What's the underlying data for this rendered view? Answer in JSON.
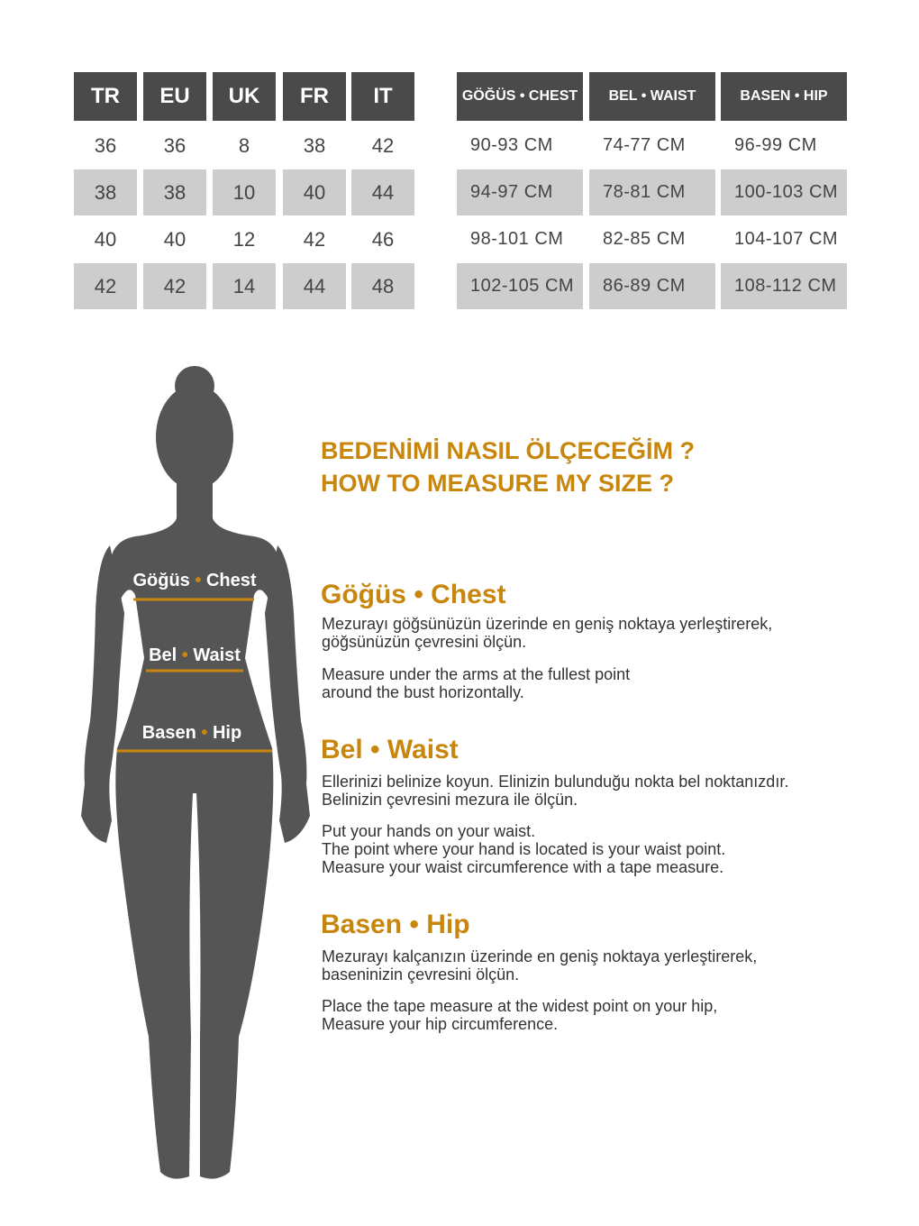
{
  "size_table": {
    "headers": [
      "TR",
      "EU",
      "UK",
      "FR",
      "IT"
    ],
    "rows": [
      [
        "36",
        "36",
        "8",
        "38",
        "42"
      ],
      [
        "38",
        "38",
        "10",
        "40",
        "44"
      ],
      [
        "40",
        "40",
        "12",
        "42",
        "46"
      ],
      [
        "42",
        "42",
        "14",
        "44",
        "48"
      ]
    ]
  },
  "measure_table": {
    "headers": [
      "GÖĞÜS • CHEST",
      "BEL • WAIST",
      "BASEN • HIP"
    ],
    "rows": [
      [
        "90-93 CM",
        "74-77 CM",
        "96-99 CM"
      ],
      [
        "94-97 CM",
        "78-81 CM",
        "100-103 CM"
      ],
      [
        "98-101 CM",
        "82-85 CM",
        "104-107 CM"
      ],
      [
        "102-105 CM",
        "86-89 CM",
        "108-112 CM"
      ]
    ]
  },
  "figure": {
    "chest_label": [
      "Göğüs",
      "•",
      "Chest"
    ],
    "waist_label": [
      "Bel",
      "•",
      "Waist"
    ],
    "hip_label": [
      "Basen",
      "•",
      "Hip"
    ]
  },
  "heading": {
    "line1": "BEDENİMİ NASIL ÖLÇECEĞİM ?",
    "line2": "HOW TO MEASURE MY SIZE ?"
  },
  "sections": [
    {
      "title": "Göğüs • Chest",
      "tr": "Mezurayı göğsünüzün üzerinde en geniş noktaya yerleştirerek,\ngöğsünüzün çevresini ölçün.",
      "en": "Measure under the arms at the fullest point\naround the bust horizontally."
    },
    {
      "title": "Bel • Waist",
      "tr": "Ellerinizi belinize koyun. Elinizin bulunduğu nokta bel noktanızdır.\nBelinizin çevresini mezura ile ölçün.",
      "en": "Put your hands on your waist.\nThe point where your hand is located is your waist point.\nMeasure your waist circumference with a tape measure."
    },
    {
      "title": "Basen • Hip",
      "tr": "Mezurayı kalçanızın üzerinde en geniş noktaya yerleştirerek,\nbaseninizin çevresini ölçün.",
      "en": "Place the tape measure at the widest point on your hip,\nMeasure your hip circumference."
    }
  ],
  "colors": {
    "accent": "#c8860d",
    "header_bg": "#4a4a4a",
    "stripe": "#cdcdcd",
    "silhouette": "#555555"
  }
}
